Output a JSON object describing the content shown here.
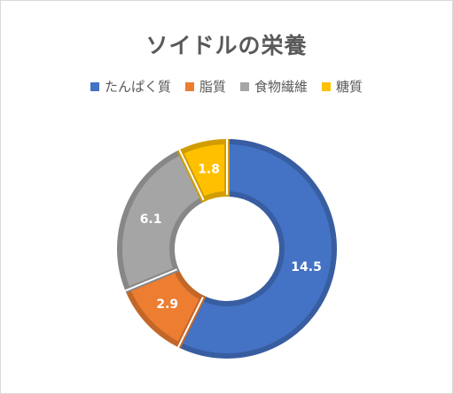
{
  "chart_data": {
    "type": "donut",
    "title": "ソイドルの栄養",
    "categories": [
      "たんぱく質",
      "脂質",
      "食物繊維",
      "糖質"
    ],
    "values": [
      14.5,
      2.9,
      6.1,
      1.8
    ],
    "data_labels": [
      "14.5",
      "2.9",
      "6.1",
      "1.8"
    ],
    "colors": [
      "#4472c4",
      "#ed7d31",
      "#a5a5a5",
      "#ffc000"
    ],
    "legend_position": "top"
  }
}
